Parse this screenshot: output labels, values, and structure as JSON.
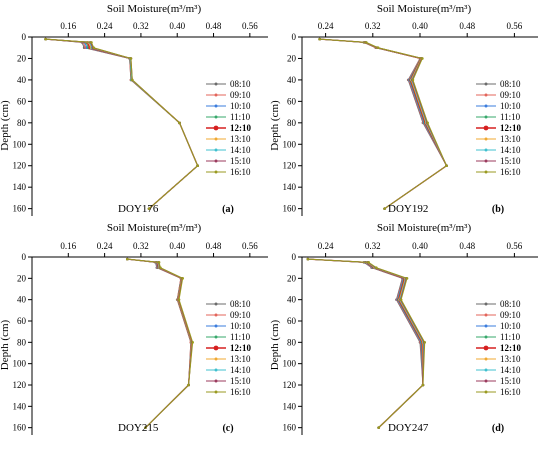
{
  "legend_entries": [
    "08:10",
    "09:10",
    "10:10",
    "11:10",
    "12:10",
    "13:10",
    "14:10",
    "15:10",
    "16:10"
  ],
  "legend_colors": [
    "#6b6b6b",
    "#e3655b",
    "#3b7ddd",
    "#37a86b",
    "#d62020",
    "#f0a830",
    "#40c0cf",
    "#9b3b5e",
    "#9a9a20"
  ],
  "highlight_series": "12:10",
  "chart_data": [
    {
      "type": "line",
      "title": "Soil Moisture(m³/m³)",
      "xlabel": "Soil Moisture(m³/m³)",
      "ylabel": "Depth (cm)",
      "xticks": [
        "0.16",
        "0.24",
        "0.32",
        "0.40",
        "0.48",
        "0.56"
      ],
      "yticks": [
        "0",
        "20",
        "40",
        "60",
        "80",
        "100",
        "120",
        "140",
        "160"
      ],
      "xlim": [
        0.08,
        0.6
      ],
      "ylim": [
        0,
        165
      ],
      "x_axis_position": "top",
      "y_inverted": true,
      "grid": false,
      "legend_position": "right",
      "annotation": "DOY176",
      "panel_label": "(a)",
      "depth": [
        2,
        5,
        10,
        20,
        40,
        80,
        120,
        160
      ],
      "series": [
        {
          "name": "08:10",
          "values": [
            0.11,
            0.19,
            0.195,
            0.295,
            0.298,
            0.405,
            0.445,
            0.338
          ]
        },
        {
          "name": "09:10",
          "values": [
            0.11,
            0.193,
            0.198,
            0.295,
            0.298,
            0.405,
            0.445,
            0.338
          ]
        },
        {
          "name": "10:10",
          "values": [
            0.11,
            0.196,
            0.201,
            0.296,
            0.299,
            0.405,
            0.445,
            0.338
          ]
        },
        {
          "name": "11:10",
          "values": [
            0.11,
            0.199,
            0.204,
            0.296,
            0.299,
            0.405,
            0.445,
            0.338
          ]
        },
        {
          "name": "12:10",
          "values": [
            0.11,
            0.202,
            0.207,
            0.297,
            0.3,
            0.405,
            0.445,
            0.338
          ]
        },
        {
          "name": "13:10",
          "values": [
            0.11,
            0.205,
            0.21,
            0.297,
            0.3,
            0.405,
            0.445,
            0.338
          ]
        },
        {
          "name": "14:10",
          "values": [
            0.11,
            0.207,
            0.212,
            0.297,
            0.3,
            0.405,
            0.445,
            0.338
          ]
        },
        {
          "name": "15:10",
          "values": [
            0.11,
            0.209,
            0.214,
            0.298,
            0.301,
            0.405,
            0.445,
            0.338
          ]
        },
        {
          "name": "16:10",
          "values": [
            0.11,
            0.211,
            0.216,
            0.298,
            0.301,
            0.405,
            0.445,
            0.338
          ]
        }
      ]
    },
    {
      "type": "line",
      "title": "Soil Moisture(m³/m³)",
      "xlabel": "Soil Moisture(m³/m³)",
      "ylabel": "Depth (cm)",
      "xticks": [
        "0.24",
        "0.32",
        "0.40",
        "0.48",
        "0.56"
      ],
      "yticks": [
        "0",
        "20",
        "40",
        "60",
        "80",
        "100",
        "120",
        "140",
        "160"
      ],
      "xlim": [
        0.2,
        0.6
      ],
      "ylim": [
        0,
        165
      ],
      "x_axis_position": "top",
      "y_inverted": true,
      "grid": false,
      "legend_position": "right",
      "annotation": "DOY192",
      "panel_label": "(b)",
      "depth": [
        2,
        5,
        10,
        20,
        40,
        80,
        120,
        160
      ],
      "series": [
        {
          "name": "08:10",
          "values": [
            0.23,
            0.305,
            0.325,
            0.4,
            0.38,
            0.405,
            0.445,
            0.34
          ]
        },
        {
          "name": "09:10",
          "values": [
            0.23,
            0.305,
            0.325,
            0.4,
            0.381,
            0.406,
            0.445,
            0.34
          ]
        },
        {
          "name": "10:10",
          "values": [
            0.23,
            0.306,
            0.326,
            0.401,
            0.382,
            0.407,
            0.445,
            0.34
          ]
        },
        {
          "name": "11:10",
          "values": [
            0.23,
            0.306,
            0.326,
            0.401,
            0.383,
            0.408,
            0.445,
            0.34
          ]
        },
        {
          "name": "12:10",
          "values": [
            0.23,
            0.307,
            0.327,
            0.402,
            0.384,
            0.409,
            0.445,
            0.34
          ]
        },
        {
          "name": "13:10",
          "values": [
            0.23,
            0.307,
            0.327,
            0.402,
            0.385,
            0.41,
            0.445,
            0.34
          ]
        },
        {
          "name": "14:10",
          "values": [
            0.23,
            0.308,
            0.328,
            0.403,
            0.386,
            0.411,
            0.445,
            0.34
          ]
        },
        {
          "name": "15:10",
          "values": [
            0.23,
            0.308,
            0.328,
            0.403,
            0.387,
            0.412,
            0.445,
            0.34
          ]
        },
        {
          "name": "16:10",
          "values": [
            0.23,
            0.309,
            0.329,
            0.404,
            0.388,
            0.413,
            0.445,
            0.34
          ]
        }
      ]
    },
    {
      "type": "line",
      "title": "Soil Moisture(m³/m³)",
      "xlabel": "Soil Moisture(m³/m³)",
      "ylabel": "Depth (cm)",
      "xticks": [
        "0.16",
        "0.24",
        "0.32",
        "0.40",
        "0.48",
        "0.56"
      ],
      "yticks": [
        "0",
        "20",
        "40",
        "60",
        "80",
        "100",
        "120",
        "140",
        "160"
      ],
      "xlim": [
        0.08,
        0.6
      ],
      "ylim": [
        0,
        165
      ],
      "x_axis_position": "top",
      "y_inverted": true,
      "grid": false,
      "legend_position": "right",
      "annotation": "DOY215",
      "panel_label": "(c)",
      "depth": [
        2,
        5,
        10,
        20,
        40,
        80,
        120,
        160
      ],
      "series": [
        {
          "name": "08:10",
          "values": [
            0.29,
            0.352,
            0.355,
            0.408,
            0.4,
            0.43,
            0.425,
            0.33
          ]
        },
        {
          "name": "09:10",
          "values": [
            0.29,
            0.353,
            0.356,
            0.408,
            0.4,
            0.43,
            0.425,
            0.33
          ]
        },
        {
          "name": "10:10",
          "values": [
            0.29,
            0.354,
            0.357,
            0.409,
            0.401,
            0.431,
            0.425,
            0.33
          ]
        },
        {
          "name": "11:10",
          "values": [
            0.29,
            0.355,
            0.358,
            0.409,
            0.401,
            0.431,
            0.425,
            0.33
          ]
        },
        {
          "name": "12:10",
          "values": [
            0.29,
            0.356,
            0.359,
            0.41,
            0.402,
            0.432,
            0.425,
            0.33
          ]
        },
        {
          "name": "13:10",
          "values": [
            0.29,
            0.357,
            0.36,
            0.41,
            0.402,
            0.432,
            0.425,
            0.33
          ]
        },
        {
          "name": "14:10",
          "values": [
            0.29,
            0.358,
            0.361,
            0.411,
            0.403,
            0.433,
            0.425,
            0.33
          ]
        },
        {
          "name": "15:10",
          "values": [
            0.29,
            0.359,
            0.362,
            0.411,
            0.403,
            0.433,
            0.425,
            0.33
          ]
        },
        {
          "name": "16:10",
          "values": [
            0.29,
            0.36,
            0.363,
            0.412,
            0.404,
            0.434,
            0.425,
            0.33
          ]
        }
      ]
    },
    {
      "type": "line",
      "title": "Soil Moisture(m³/m³)",
      "xlabel": "Soil Moisture(m³/m³)",
      "ylabel": "Depth (cm)",
      "xticks": [
        "0.24",
        "0.32",
        "0.40",
        "0.48",
        "0.56"
      ],
      "yticks": [
        "0",
        "20",
        "40",
        "60",
        "80",
        "100",
        "120",
        "140",
        "160"
      ],
      "xlim": [
        0.2,
        0.6
      ],
      "ylim": [
        0,
        165
      ],
      "x_axis_position": "top",
      "y_inverted": true,
      "grid": false,
      "legend_position": "right",
      "annotation": "DOY247",
      "panel_label": "(d)",
      "depth": [
        2,
        5,
        10,
        20,
        40,
        80,
        120,
        160
      ],
      "series": [
        {
          "name": "08:10",
          "values": [
            0.21,
            0.305,
            0.318,
            0.37,
            0.36,
            0.4,
            0.405,
            0.33
          ]
        },
        {
          "name": "09:10",
          "values": [
            0.21,
            0.306,
            0.319,
            0.371,
            0.361,
            0.401,
            0.405,
            0.33
          ]
        },
        {
          "name": "10:10",
          "values": [
            0.21,
            0.307,
            0.32,
            0.372,
            0.362,
            0.402,
            0.405,
            0.33
          ]
        },
        {
          "name": "11:10",
          "values": [
            0.21,
            0.308,
            0.321,
            0.373,
            0.363,
            0.403,
            0.405,
            0.33
          ]
        },
        {
          "name": "12:10",
          "values": [
            0.21,
            0.309,
            0.322,
            0.374,
            0.364,
            0.404,
            0.405,
            0.33
          ]
        },
        {
          "name": "13:10",
          "values": [
            0.21,
            0.31,
            0.323,
            0.375,
            0.365,
            0.405,
            0.405,
            0.33
          ]
        },
        {
          "name": "14:10",
          "values": [
            0.21,
            0.311,
            0.324,
            0.376,
            0.366,
            0.406,
            0.405,
            0.33
          ]
        },
        {
          "name": "15:10",
          "values": [
            0.21,
            0.312,
            0.325,
            0.377,
            0.367,
            0.407,
            0.405,
            0.33
          ]
        },
        {
          "name": "16:10",
          "values": [
            0.21,
            0.313,
            0.326,
            0.378,
            0.368,
            0.408,
            0.405,
            0.33
          ]
        }
      ]
    }
  ]
}
